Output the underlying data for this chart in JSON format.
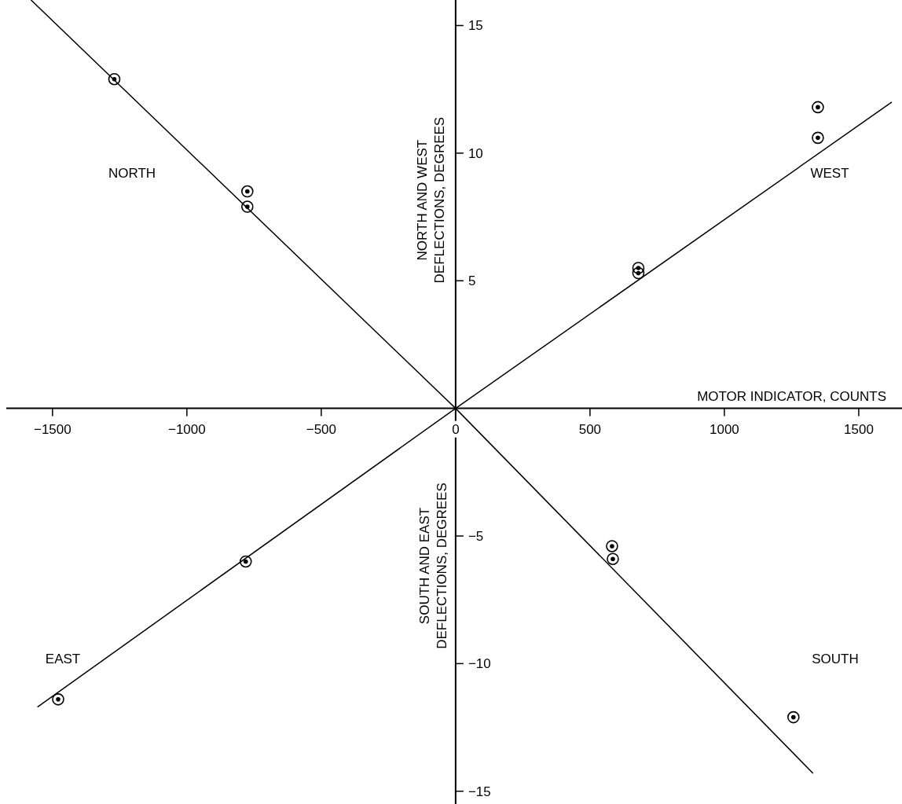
{
  "chart_data": {
    "type": "scatter",
    "xlabel": "MOTOR INDICATOR, COUNTS",
    "ylabel": "NORTH AND WEST DEFLECTIONS, DEGREES",
    "xlim": [
      -1672,
      1661
    ],
    "ylim": [
      -15.5,
      16
    ],
    "xticks": [
      {
        "value": -1500,
        "label": "−1500"
      },
      {
        "value": -1000,
        "label": "−1000"
      },
      {
        "value": -500,
        "label": "−500"
      },
      {
        "value": 0,
        "label": "0"
      },
      500,
      1000,
      1500
    ],
    "yticks": [
      {
        "value": -15,
        "label": "−15"
      },
      {
        "value": -10,
        "label": "−10"
      },
      {
        "value": -5,
        "label": "−5"
      },
      5,
      10,
      15
    ],
    "marker": "circle",
    "series": [
      {
        "color": "#000000",
        "x": [
          -1270,
          -775,
          -775
        ],
        "values": [
          12.9,
          8.5,
          7.9
        ]
      },
      {
        "color": "#000000",
        "x": [
          680,
          680,
          1348,
          1348
        ],
        "values": [
          5.5,
          5.3,
          11.8,
          10.6
        ]
      },
      {
        "color": "#000000",
        "x": [
          -781,
          -1479
        ],
        "values": [
          -6.0,
          -11.4
        ]
      },
      {
        "color": "#000000",
        "x": [
          582,
          585,
          1257
        ],
        "values": [
          -5.4,
          -5.9,
          -12.1
        ]
      },
      {
        "type": "line",
        "marker": "none",
        "color": "#000000",
        "x": [
          -1580,
          0,
          1330
        ],
        "values": [
          16,
          0,
          -14.3
        ]
      },
      {
        "type": "line",
        "marker": "none",
        "color": "#000000",
        "x": [
          -1556,
          0,
          1623
        ],
        "values": [
          -11.7,
          0,
          12.0
        ]
      }
    ],
    "annotations": [
      "NORTH",
      "WEST",
      "EAST",
      "SOUTH",
      "SOUTH AND EAST DEFLECTIONS, DEGREES"
    ]
  }
}
